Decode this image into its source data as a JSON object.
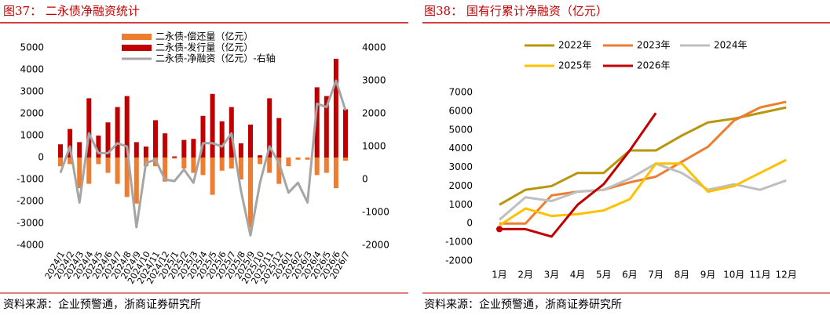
{
  "chart_data": [
    {
      "type": "combo",
      "title": "图37：  二永债净融资统计",
      "source": "资料来源：企业预警通，浙商证券研究所",
      "categories": [
        "2024/1",
        "2024/2",
        "2024/3",
        "2024/4",
        "2024/5",
        "2024/6",
        "2024/7",
        "2024/8",
        "2024/9",
        "2024/10",
        "2024/11",
        "2024/12",
        "2025/1",
        "2025/2",
        "2025/3",
        "2025/4",
        "2025/5",
        "2025/6",
        "2025/7",
        "2025/8",
        "2025/9",
        "2025/10",
        "2025/11",
        "2025/12",
        "2026/1",
        "2026/2",
        "2026/3",
        "2026/4",
        "2026/5",
        "2026/6",
        "2026/7"
      ],
      "series": [
        {
          "name": "二永债-偿还量（亿元）",
          "kind": "bar",
          "color": "#ED7D31",
          "values": [
            -400,
            -300,
            -1400,
            -1200,
            -300,
            -700,
            -1200,
            -1800,
            -2100,
            -400,
            -400,
            -1100,
            -50,
            -500,
            -700,
            -800,
            -1700,
            -600,
            -500,
            -1000,
            -3200,
            -300,
            -700,
            -1200,
            -400,
            -100,
            -100,
            -800,
            -700,
            -1400,
            -150
          ]
        },
        {
          "name": "二永债-发行量（亿元）",
          "kind": "bar",
          "color": "#C00000",
          "values": [
            600,
            1300,
            700,
            2700,
            1000,
            1600,
            2300,
            2800,
            700,
            500,
            1700,
            1100,
            50,
            800,
            850,
            1900,
            2900,
            1650,
            2300,
            650,
            1500,
            100,
            2700,
            1800,
            0,
            0,
            0,
            3200,
            2800,
            4500,
            2200
          ]
        },
        {
          "name": "二永债-净融资（亿元）-右轴",
          "kind": "line",
          "axis": "y2",
          "color": "#A5A5A5",
          "values": [
            200,
            1000,
            -700,
            1400,
            800,
            800,
            1100,
            1000,
            -1450,
            500,
            600,
            0,
            -50,
            300,
            -100,
            1100,
            1100,
            1000,
            1400,
            -350,
            -1700,
            -100,
            1000,
            500,
            -400,
            -100,
            -700,
            2300,
            2200,
            3000,
            2100
          ]
        }
      ],
      "ylim": [
        -4000,
        5000
      ],
      "yticks": [
        -4000,
        -3000,
        -2000,
        -1000,
        0,
        1000,
        2000,
        3000,
        4000,
        5000
      ],
      "y2lim": [
        -2000,
        4000
      ],
      "y2ticks": [
        -2000,
        -1000,
        0,
        1000,
        2000,
        3000,
        4000
      ],
      "grid": false
    },
    {
      "type": "line",
      "title": "图38：  国有行累计净融资（亿元）",
      "source": "资料来源：企业预警通，浙商证券研究所",
      "categories": [
        "1月",
        "2月",
        "3月",
        "4月",
        "5月",
        "6月",
        "7月",
        "8月",
        "9月",
        "10月",
        "11月",
        "12月"
      ],
      "series": [
        {
          "name": "2022年",
          "color": "#B8960C",
          "values": [
            1000,
            1800,
            2000,
            2700,
            2700,
            3900,
            3900,
            4700,
            5400,
            5600,
            5900,
            6200
          ]
        },
        {
          "name": "2023年",
          "color": "#ED7D31",
          "values": [
            0,
            0,
            1500,
            1700,
            1800,
            2200,
            2500,
            3300,
            4100,
            5500,
            6200,
            6500
          ]
        },
        {
          "name": "2024年",
          "color": "#BFBFBF",
          "values": [
            200,
            1400,
            1200,
            1700,
            1800,
            2400,
            3200,
            2700,
            1800,
            2100,
            1800,
            2300
          ]
        },
        {
          "name": "2025年",
          "color": "#FFC000",
          "values": [
            -100,
            800,
            400,
            500,
            700,
            1300,
            3200,
            3200,
            1700,
            2000,
            2700,
            3400
          ]
        },
        {
          "name": "2026年",
          "color": "#C00000",
          "values": [
            -300,
            -300,
            -700,
            1000,
            2100,
            3900,
            5900,
            null,
            null,
            null,
            null,
            null
          ]
        }
      ],
      "ylim": [
        -2000,
        7000
      ],
      "yticks": [
        -2000,
        -1000,
        0,
        1000,
        2000,
        3000,
        4000,
        5000,
        6000,
        7000
      ],
      "grid": false
    }
  ]
}
